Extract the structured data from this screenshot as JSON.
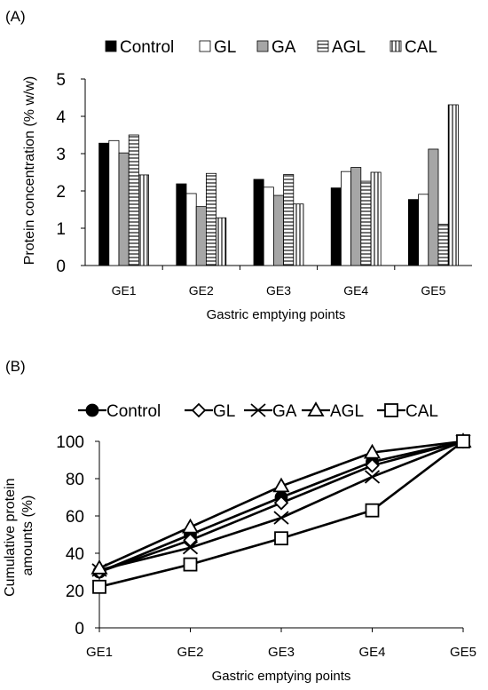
{
  "chart_data": [
    {
      "type": "bar",
      "panel_label": "(A)",
      "categories": [
        "GE1",
        "GE2",
        "GE3",
        "GE4",
        "GE5"
      ],
      "series": [
        {
          "name": "Control",
          "values": [
            3.28,
            2.19,
            2.31,
            2.08,
            1.77
          ],
          "fill": "#000000",
          "pattern": "solid"
        },
        {
          "name": "GL",
          "values": [
            3.35,
            1.93,
            2.1,
            2.52,
            1.91
          ],
          "fill": "#ffffff",
          "pattern": "open"
        },
        {
          "name": "GA",
          "values": [
            3.02,
            1.58,
            1.88,
            2.63,
            3.12
          ],
          "fill": "#a6a6a6",
          "pattern": "solid"
        },
        {
          "name": "AGL",
          "values": [
            3.5,
            2.47,
            2.44,
            2.26,
            1.11
          ],
          "fill": "#ffffff",
          "pattern": "horizontal-lines"
        },
        {
          "name": "CAL",
          "values": [
            2.43,
            1.28,
            1.65,
            2.5,
            4.31
          ],
          "fill": "#ffffff",
          "pattern": "vertical-lines"
        }
      ],
      "xlabel": "Gastric emptying points",
      "ylabel": "Protein concentration (% w/w)",
      "ylim": [
        0,
        5
      ],
      "yticks": [
        "0",
        "1",
        "2",
        "3",
        "4",
        "5"
      ],
      "grid": false,
      "legend_position": "top"
    },
    {
      "type": "line",
      "panel_label": "(B)",
      "categories": [
        "GE1",
        "GE2",
        "GE3",
        "GE4",
        "GE5"
      ],
      "series": [
        {
          "name": "Control",
          "values": [
            30,
            50,
            70,
            89,
            100
          ],
          "marker": "filled-circle"
        },
        {
          "name": "GL",
          "values": [
            30,
            47,
            67,
            87,
            100
          ],
          "marker": "open-diamond"
        },
        {
          "name": "GA",
          "values": [
            31,
            43,
            59,
            81,
            100
          ],
          "marker": "x"
        },
        {
          "name": "AGL",
          "values": [
            32,
            54,
            76,
            94,
            100
          ],
          "marker": "open-triangle"
        },
        {
          "name": "CAL",
          "values": [
            22,
            34,
            48,
            63,
            100
          ],
          "marker": "open-square"
        }
      ],
      "xlabel": "Gastric emptying points",
      "ylabel": [
        "Cumulative protein",
        "amounts (%)"
      ],
      "ylim": [
        0,
        100
      ],
      "yticks": [
        "0",
        "20",
        "40",
        "60",
        "80",
        "100"
      ],
      "grid": false,
      "legend_position": "top"
    }
  ]
}
